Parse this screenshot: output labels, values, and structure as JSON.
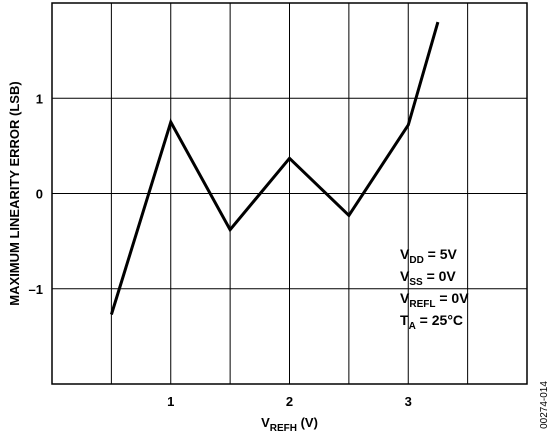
{
  "chart_data": {
    "type": "line",
    "title": "",
    "xlabel": {
      "main": "V",
      "sub": "REFH",
      "suffix": " (V)"
    },
    "ylabel": "MAXIMUM LINEARITY ERROR (LSB)",
    "xlim": [
      0,
      4
    ],
    "ylim": [
      -2,
      2
    ],
    "x_ticks": [
      {
        "value": 1,
        "label": "1"
      },
      {
        "value": 2,
        "label": "2"
      },
      {
        "value": 3,
        "label": "3"
      }
    ],
    "y_ticks": [
      {
        "value": -1,
        "label": "–1"
      },
      {
        "value": 0,
        "label": "0"
      },
      {
        "value": 1,
        "label": "1"
      }
    ],
    "x_grid": [
      0.5,
      1,
      1.5,
      2,
      2.5,
      3,
      3.5
    ],
    "y_grid": [
      -1,
      0,
      1
    ],
    "grid": true,
    "series": [
      {
        "x": [
          0.5,
          1.0,
          1.5,
          2.0,
          2.5,
          3.0,
          3.25
        ],
        "y": [
          -1.27,
          0.75,
          -0.38,
          0.37,
          -0.23,
          0.72,
          1.8
        ]
      }
    ],
    "annotations": [
      {
        "main": "V",
        "sub": "DD",
        "rest": " = 5V"
      },
      {
        "main": "V",
        "sub": "SS",
        "rest": " = 0V"
      },
      {
        "main": "V",
        "sub": "REFL",
        "rest": " = 0V"
      },
      {
        "main": "T",
        "sub": "A",
        "rest": " = 25°C"
      }
    ],
    "figure_code": "00274-014"
  }
}
